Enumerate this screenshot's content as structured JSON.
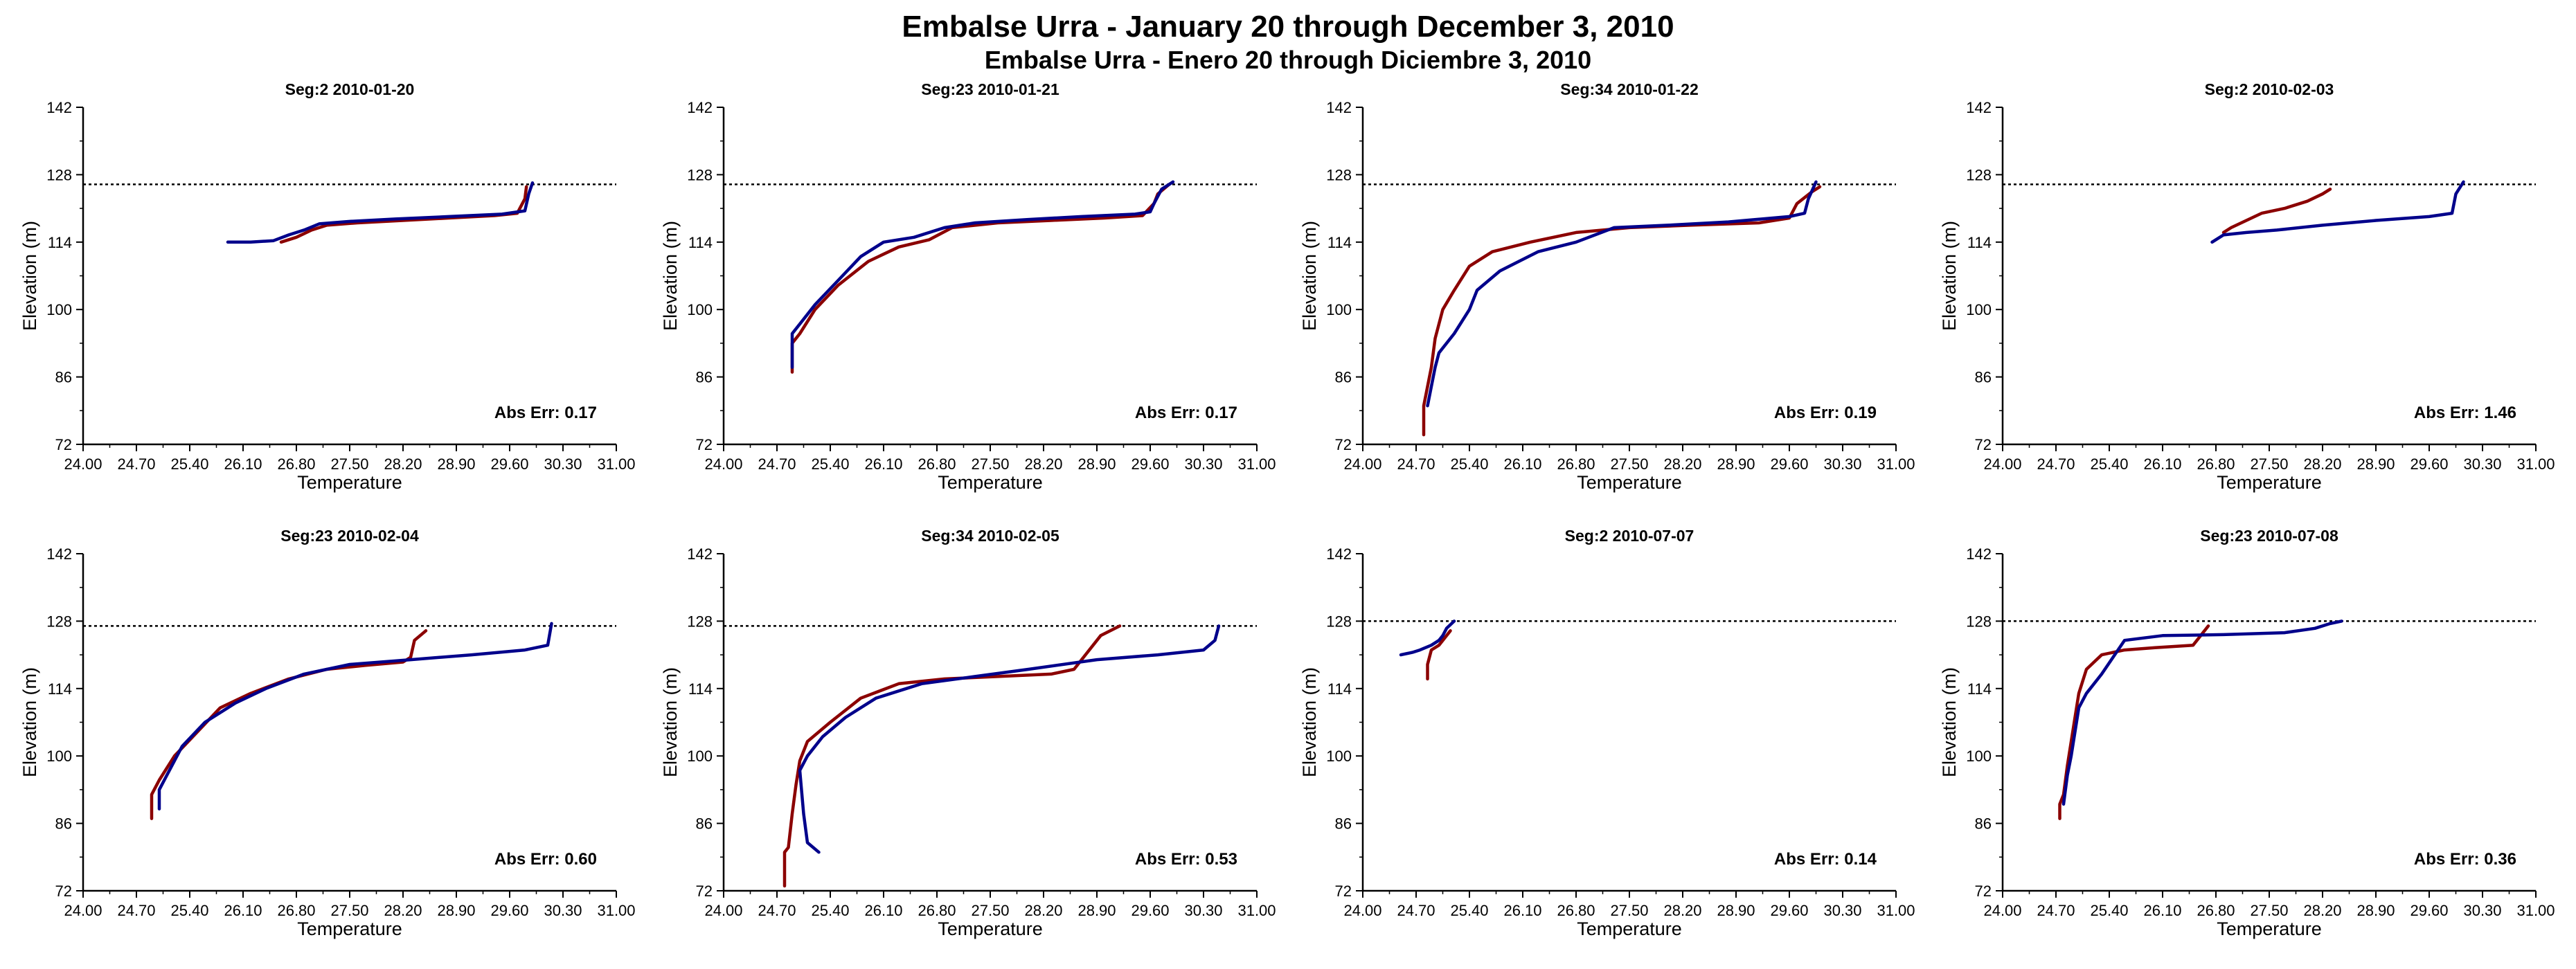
{
  "page": {
    "title": "Embalse Urra - January 20 through December 3, 2010",
    "subtitle": "Embalse Urra - Enero 20 through Diciembre 3, 2010"
  },
  "colors": {
    "series_a": "#8b0000",
    "series_b": "#00008b",
    "reference": "#000000"
  },
  "chart_data": [
    {
      "type": "line",
      "title": "Seg:2  2010-01-20",
      "xlabel": "Temperature",
      "ylabel": "Elevation (m)",
      "xlim": [
        24.0,
        31.0
      ],
      "ylim": [
        72,
        142
      ],
      "xticks": [
        "24.00",
        "24.70",
        "25.40",
        "26.10",
        "26.80",
        "27.50",
        "28.20",
        "28.90",
        "29.60",
        "30.30",
        "31.00"
      ],
      "yticks": [
        "72",
        "86",
        "100",
        "114",
        "128",
        "142"
      ],
      "reference_line": 126,
      "annotation": "Abs Err: 0.17",
      "series": [
        {
          "color": "#8b0000",
          "x": [
            26.6,
            26.8,
            27.0,
            27.2,
            27.6,
            28.2,
            28.8,
            29.4,
            29.7,
            29.8,
            29.82
          ],
          "y": [
            114,
            115,
            116.5,
            117.5,
            118,
            118.5,
            119,
            119.5,
            120,
            123,
            125.5
          ]
        },
        {
          "color": "#00008b",
          "x": [
            25.9,
            26.2,
            26.5,
            26.7,
            26.9,
            27.1,
            27.5,
            28.1,
            28.8,
            29.5,
            29.8,
            29.85,
            29.9
          ],
          "y": [
            114,
            114,
            114.3,
            115.5,
            116.5,
            117.8,
            118.3,
            118.8,
            119.3,
            119.8,
            120.5,
            124,
            126.3
          ]
        }
      ]
    },
    {
      "type": "line",
      "title": "Seg:23  2010-01-21",
      "xlabel": "Temperature",
      "ylabel": "Elevation (m)",
      "xlim": [
        24.0,
        31.0
      ],
      "ylim": [
        72,
        142
      ],
      "xticks": [
        "24.00",
        "24.70",
        "25.40",
        "26.10",
        "26.80",
        "27.50",
        "28.20",
        "28.90",
        "29.60",
        "30.30",
        "31.00"
      ],
      "yticks": [
        "72",
        "86",
        "100",
        "114",
        "128",
        "142"
      ],
      "reference_line": 126,
      "annotation": "Abs Err: 0.17",
      "series": [
        {
          "color": "#8b0000",
          "x": [
            24.9,
            24.9,
            25.0,
            25.2,
            25.5,
            25.9,
            26.3,
            26.7,
            27.0,
            27.6,
            28.3,
            29.0,
            29.5,
            29.65,
            29.7,
            29.85
          ],
          "y": [
            87,
            93,
            95,
            100,
            105,
            110,
            113,
            114.5,
            117,
            118,
            118.5,
            119,
            119.5,
            122,
            124,
            126
          ]
        },
        {
          "color": "#00008b",
          "x": [
            24.9,
            24.9,
            25.0,
            25.2,
            25.5,
            25.8,
            26.1,
            26.5,
            26.9,
            27.3,
            28.0,
            28.7,
            29.4,
            29.6,
            29.65,
            29.75,
            29.9
          ],
          "y": [
            88,
            95,
            97,
            101,
            106,
            111,
            114,
            115,
            117,
            118,
            118.7,
            119.3,
            119.8,
            120.3,
            122,
            125,
            126.5
          ]
        }
      ]
    },
    {
      "type": "line",
      "title": "Seg:34  2010-01-22",
      "xlabel": "Temperature",
      "ylabel": "Elevation (m)",
      "xlim": [
        24.0,
        31.0
      ],
      "ylim": [
        72,
        142
      ],
      "xticks": [
        "24.00",
        "24.70",
        "25.40",
        "26.10",
        "26.80",
        "27.50",
        "28.20",
        "28.90",
        "29.60",
        "30.30",
        "31.00"
      ],
      "yticks": [
        "72",
        "86",
        "100",
        "114",
        "128",
        "142"
      ],
      "reference_line": 126,
      "annotation": "Abs Err: 0.19",
      "series": [
        {
          "color": "#8b0000",
          "x": [
            24.8,
            24.8,
            24.9,
            24.95,
            25.05,
            25.2,
            25.4,
            25.7,
            26.2,
            26.8,
            27.5,
            28.3,
            29.2,
            29.6,
            29.7,
            29.9,
            30.0
          ],
          "y": [
            74,
            80,
            88,
            94,
            100,
            104,
            109,
            112,
            114,
            116,
            117,
            117.5,
            118,
            119,
            122,
            124.5,
            125.5
          ]
        },
        {
          "color": "#00008b",
          "x": [
            24.85,
            24.9,
            24.95,
            25.0,
            25.2,
            25.4,
            25.5,
            25.8,
            26.3,
            26.8,
            27.3,
            28.0,
            28.8,
            29.6,
            29.8,
            29.85,
            29.95
          ],
          "y": [
            80,
            84,
            88,
            91,
            95,
            100,
            104,
            108,
            112,
            114,
            117,
            117.5,
            118.2,
            119.3,
            120,
            123,
            126.5
          ]
        }
      ]
    },
    {
      "type": "line",
      "title": "Seg:2  2010-02-03",
      "xlabel": "Temperature",
      "ylabel": "Elevation (m)",
      "xlim": [
        24.0,
        31.0
      ],
      "ylim": [
        72,
        142
      ],
      "xticks": [
        "24.00",
        "24.70",
        "25.40",
        "26.10",
        "26.80",
        "27.50",
        "28.20",
        "28.90",
        "29.60",
        "30.30",
        "31.00"
      ],
      "yticks": [
        "72",
        "86",
        "100",
        "114",
        "128",
        "142"
      ],
      "reference_line": 126,
      "annotation": "Abs Err: 1.46",
      "series": [
        {
          "color": "#8b0000",
          "x": [
            26.9,
            27.0,
            27.2,
            27.4,
            27.7,
            28.0,
            28.2,
            28.3
          ],
          "y": [
            116,
            117,
            118.5,
            120,
            121,
            122.5,
            124,
            125
          ]
        },
        {
          "color": "#00008b",
          "x": [
            26.75,
            26.9,
            27.2,
            27.6,
            28.2,
            28.9,
            29.6,
            29.9,
            29.95,
            30.05
          ],
          "y": [
            114,
            115.5,
            116,
            116.5,
            117.5,
            118.5,
            119.3,
            120,
            124,
            126.5
          ]
        }
      ]
    },
    {
      "type": "line",
      "title": "Seg:23  2010-02-04",
      "xlabel": "Temperature",
      "ylabel": "Elevation (m)",
      "xlim": [
        24.0,
        31.0
      ],
      "ylim": [
        72,
        142
      ],
      "xticks": [
        "24.00",
        "24.70",
        "25.40",
        "26.10",
        "26.80",
        "27.50",
        "28.20",
        "28.90",
        "29.60",
        "30.30",
        "31.00"
      ],
      "yticks": [
        "72",
        "86",
        "100",
        "114",
        "128",
        "142"
      ],
      "reference_line": 127,
      "annotation": "Abs Err: 0.60",
      "series": [
        {
          "color": "#8b0000",
          "x": [
            24.9,
            24.9,
            25.0,
            25.2,
            25.5,
            25.8,
            26.2,
            26.7,
            27.2,
            27.7,
            28.2,
            28.3,
            28.35,
            28.5
          ],
          "y": [
            87,
            92,
            95,
            100,
            105,
            110,
            113,
            116,
            118,
            118.8,
            119.5,
            120.5,
            124,
            126
          ]
        },
        {
          "color": "#00008b",
          "x": [
            25.0,
            25.0,
            25.1,
            25.3,
            25.6,
            26.0,
            26.4,
            26.9,
            27.5,
            28.3,
            29.1,
            29.8,
            30.1,
            30.15
          ],
          "y": [
            89,
            93,
            96,
            102,
            107,
            111,
            114,
            117,
            119,
            120,
            121,
            122,
            123,
            127.5
          ]
        }
      ]
    },
    {
      "type": "line",
      "title": "Seg:34  2010-02-05",
      "xlabel": "Temperature",
      "ylabel": "Elevation (m)",
      "xlim": [
        24.0,
        31.0
      ],
      "ylim": [
        72,
        142
      ],
      "xticks": [
        "24.00",
        "24.70",
        "25.40",
        "26.10",
        "26.80",
        "27.50",
        "28.20",
        "28.90",
        "29.60",
        "30.30",
        "31.00"
      ],
      "yticks": [
        "72",
        "86",
        "100",
        "114",
        "128",
        "142"
      ],
      "reference_line": 127,
      "annotation": "Abs Err: 0.53",
      "series": [
        {
          "color": "#8b0000",
          "x": [
            24.8,
            24.8,
            24.85,
            24.9,
            24.95,
            25.0,
            25.1,
            25.4,
            25.8,
            26.3,
            26.9,
            27.6,
            28.3,
            28.6,
            28.75,
            28.95,
            29.2
          ],
          "y": [
            73,
            80,
            81,
            88,
            94,
            99,
            103,
            107,
            112,
            115,
            116,
            116.5,
            117,
            118,
            121,
            125,
            127
          ]
        },
        {
          "color": "#00008b",
          "x": [
            25.25,
            25.1,
            25.05,
            25.0,
            25.1,
            25.3,
            25.6,
            26.0,
            26.6,
            27.3,
            28.0,
            28.9,
            29.7,
            30.3,
            30.45,
            30.5
          ],
          "y": [
            80,
            82,
            88,
            97,
            100,
            104,
            108,
            112,
            115,
            116.5,
            118,
            120,
            121,
            122,
            124,
            127
          ]
        }
      ]
    },
    {
      "type": "line",
      "title": "Seg:2  2010-07-07",
      "xlabel": "Temperature",
      "ylabel": "Elevation (m)",
      "xlim": [
        24.0,
        31.0
      ],
      "ylim": [
        72,
        142
      ],
      "xticks": [
        "24.00",
        "24.70",
        "25.40",
        "26.10",
        "26.80",
        "27.50",
        "28.20",
        "28.90",
        "29.60",
        "30.30",
        "31.00"
      ],
      "yticks": [
        "72",
        "86",
        "100",
        "114",
        "128",
        "142"
      ],
      "reference_line": 128,
      "annotation": "Abs Err: 0.14",
      "series": [
        {
          "color": "#8b0000",
          "x": [
            24.85,
            24.85,
            24.9,
            25.0,
            25.1,
            25.15
          ],
          "y": [
            116,
            119,
            122,
            123,
            125,
            126
          ]
        },
        {
          "color": "#00008b",
          "x": [
            24.5,
            24.65,
            24.75,
            24.9,
            25.0,
            25.05,
            25.1,
            25.2
          ],
          "y": [
            121,
            121.5,
            122,
            123,
            124,
            125,
            126.5,
            128
          ]
        }
      ]
    },
    {
      "type": "line",
      "title": "Seg:23  2010-07-08",
      "xlabel": "Temperature",
      "ylabel": "Elevation (m)",
      "xlim": [
        24.0,
        31.0
      ],
      "ylim": [
        72,
        142
      ],
      "xticks": [
        "24.00",
        "24.70",
        "25.40",
        "26.10",
        "26.80",
        "27.50",
        "28.20",
        "28.90",
        "29.60",
        "30.30",
        "31.00"
      ],
      "yticks": [
        "72",
        "86",
        "100",
        "114",
        "128",
        "142"
      ],
      "reference_line": 128,
      "annotation": "Abs Err: 0.36",
      "series": [
        {
          "color": "#8b0000",
          "x": [
            24.75,
            24.75,
            24.8,
            24.85,
            24.9,
            24.95,
            25.0,
            25.1,
            25.3,
            25.6,
            26.0,
            26.5,
            26.6,
            26.7
          ],
          "y": [
            87,
            90,
            92,
            98,
            103,
            108,
            113,
            118,
            121,
            122,
            122.5,
            123,
            125,
            127
          ]
        },
        {
          "color": "#00008b",
          "x": [
            24.8,
            24.85,
            24.9,
            24.95,
            25.0,
            25.1,
            25.3,
            25.6,
            26.1,
            26.9,
            27.7,
            28.1,
            28.3,
            28.45
          ],
          "y": [
            90,
            96,
            100,
            105,
            110,
            113,
            117,
            124,
            125,
            125.2,
            125.6,
            126.5,
            127.5,
            128
          ]
        }
      ]
    }
  ]
}
